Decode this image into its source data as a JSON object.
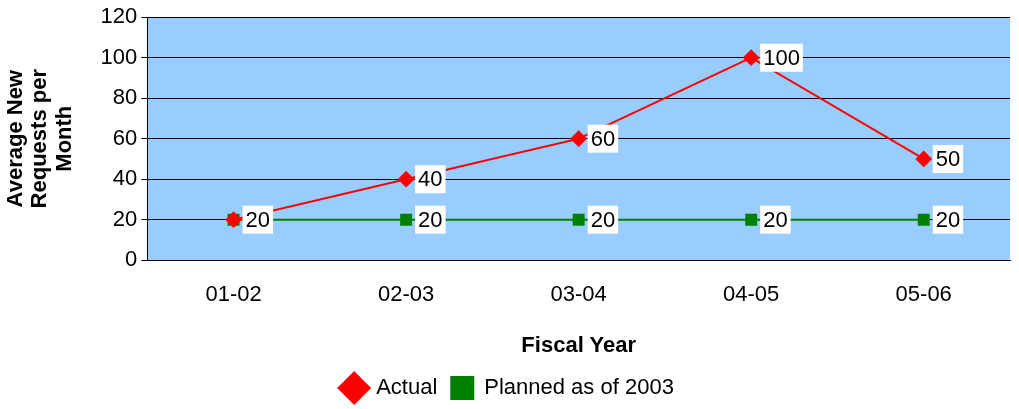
{
  "chart_data": {
    "type": "line",
    "xlabel": "Fiscal Year",
    "ylabel": "Average New Requests per Month",
    "categories": [
      "01-02",
      "02-03",
      "03-04",
      "04-05",
      "05-06"
    ],
    "series": [
      {
        "name": "Actual",
        "color": "#ff0000",
        "marker": "diamond",
        "values": [
          20,
          40,
          60,
          100,
          50
        ],
        "value_labels": [
          null,
          "40",
          "60",
          "100",
          "50"
        ]
      },
      {
        "name": "Planned as of 2003",
        "color": "#008000",
        "marker": "square",
        "values": [
          20,
          20,
          20,
          20,
          20
        ],
        "value_labels": [
          "20",
          "20",
          "20",
          "20",
          "20"
        ]
      }
    ],
    "ylim": [
      0,
      120
    ],
    "yticks": [
      0,
      20,
      40,
      60,
      80,
      100,
      120
    ],
    "grid": "y",
    "legend": "bottom",
    "line_style": "solid"
  }
}
